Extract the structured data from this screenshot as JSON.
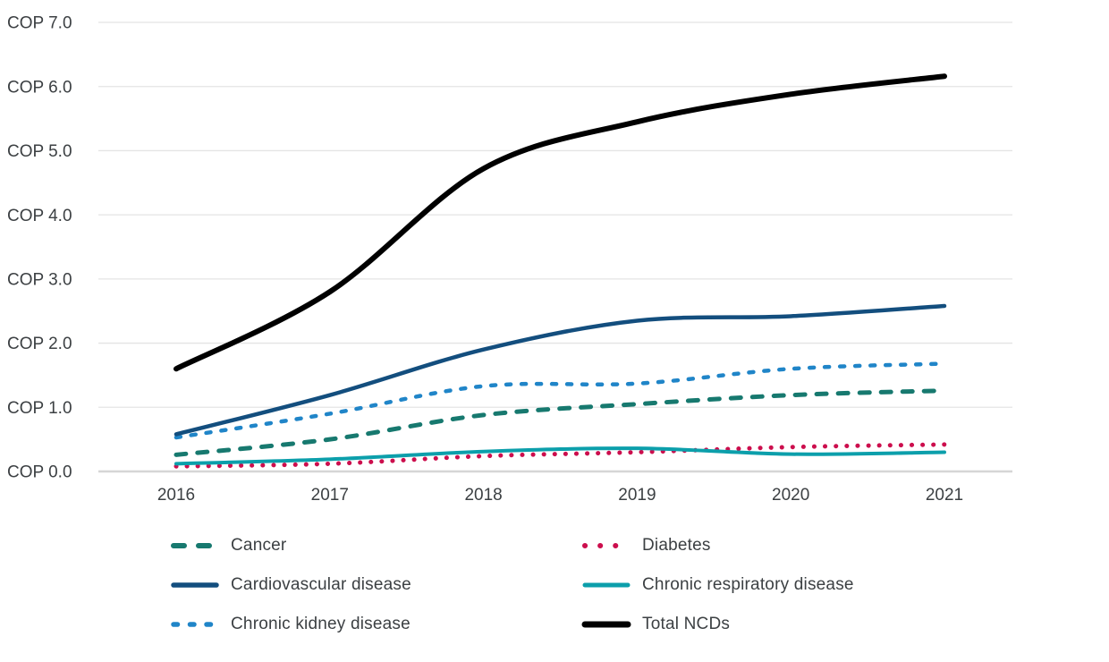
{
  "chart_data": {
    "type": "line",
    "currency_prefix": "COP",
    "x_labels": [
      "2016",
      "2017",
      "2018",
      "2019",
      "2020",
      "2021"
    ],
    "y_ticks": [
      0,
      1,
      2,
      3,
      4,
      5,
      6,
      7
    ],
    "y_tick_labels": [
      "COP 0.0",
      "COP 1.0",
      "COP 2.0",
      "COP 3.0",
      "COP 4.0",
      "COP 5.0",
      "COP 6.0",
      "COP 7.0"
    ],
    "ylim": [
      0,
      7
    ],
    "grid": "horizontal",
    "legend_position": "bottom-two-columns",
    "series": [
      {
        "name": "Cancer",
        "color": "#17796F",
        "style": "dashed",
        "width": 5,
        "values": [
          0.26,
          0.5,
          0.88,
          1.05,
          1.19,
          1.26
        ]
      },
      {
        "name": "Diabetes",
        "color": "#CC0E4D",
        "style": "dotted",
        "width": 5,
        "values": [
          0.08,
          0.12,
          0.24,
          0.3,
          0.38,
          0.42
        ]
      },
      {
        "name": "Chronic kidney disease",
        "color": "#2085C8",
        "style": "short-dashed",
        "width": 4.5,
        "values": [
          0.53,
          0.9,
          1.33,
          1.37,
          1.6,
          1.68
        ]
      },
      {
        "name": "Chronic respiratory disease",
        "color": "#0C9FAB",
        "style": "solid",
        "width": 4,
        "values": [
          0.12,
          0.19,
          0.31,
          0.36,
          0.27,
          0.3
        ]
      },
      {
        "name": "Cardiovascular disease",
        "color": "#134E7E",
        "style": "solid",
        "width": 4.5,
        "values": [
          0.58,
          1.19,
          1.9,
          2.35,
          2.42,
          2.58
        ]
      },
      {
        "name": "Total NCDs",
        "color": "#000000",
        "style": "solid",
        "width": 6,
        "values": [
          1.6,
          2.8,
          4.72,
          5.45,
          5.88,
          6.16
        ]
      }
    ],
    "legend_columns": [
      [
        "Cancer",
        "Cardiovascular disease",
        "Chronic kidney disease"
      ],
      [
        "Diabetes",
        "Chronic respiratory disease",
        "Total NCDs"
      ]
    ]
  },
  "colors": {
    "axis_text": "#3C4043",
    "gridline": "#E4E4E4",
    "axis_line": "#D6D6D6",
    "background": "#FFFFFF"
  }
}
